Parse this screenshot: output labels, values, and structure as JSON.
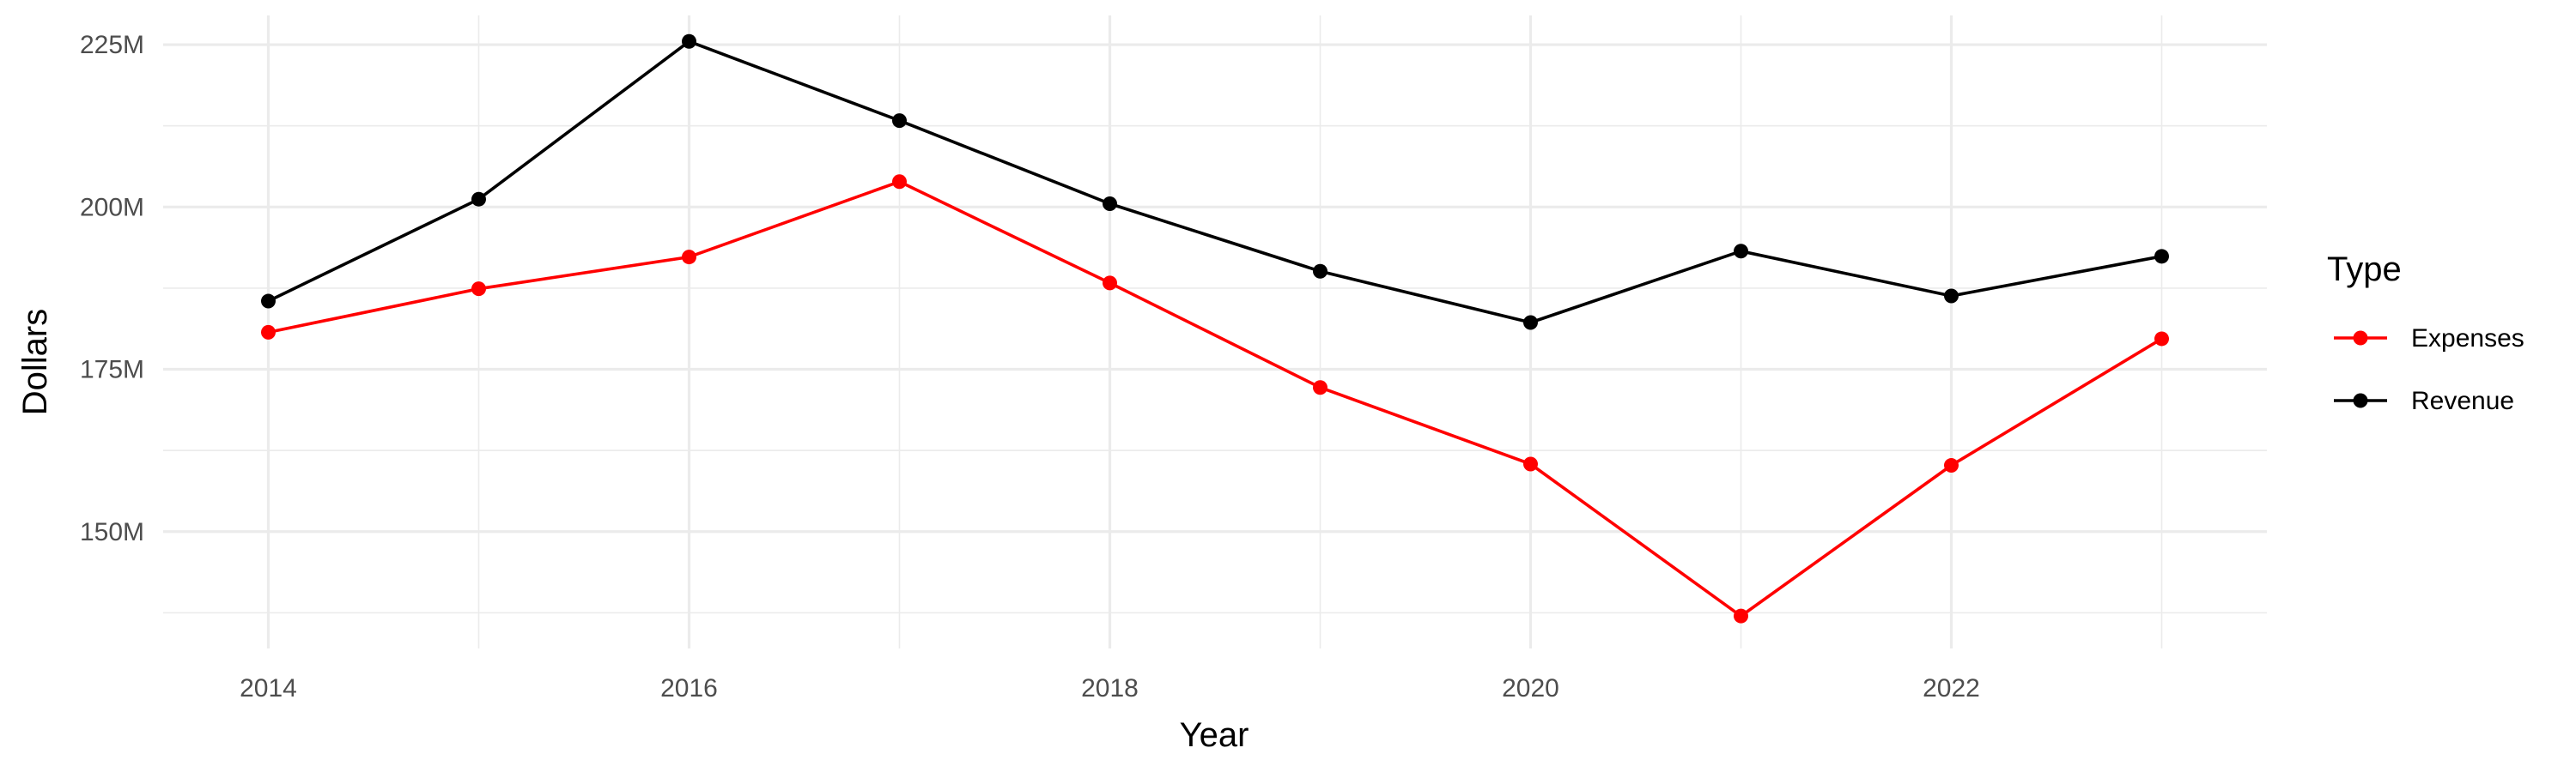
{
  "chart_data": {
    "type": "line",
    "title": "",
    "xlabel": "Year",
    "ylabel": "Dollars",
    "x": [
      2014,
      2015,
      2016,
      2017,
      2018,
      2019,
      2020,
      2021,
      2022,
      2023
    ],
    "x_ticks": [
      2014,
      2016,
      2018,
      2020,
      2022
    ],
    "x_tick_labels": [
      "2014",
      "2016",
      "2018",
      "2020",
      "2022"
    ],
    "xlim": [
      2013.5,
      2023.5
    ],
    "y_ticks": [
      150000000,
      175000000,
      200000000,
      225000000
    ],
    "y_tick_labels": [
      "150M",
      "175M",
      "200M",
      "225M"
    ],
    "ylim": [
      132000000,
      229500000
    ],
    "grid": true,
    "legend": {
      "title": "Type",
      "position": "right"
    },
    "series": [
      {
        "name": "Expenses",
        "color": "#ff0000",
        "values": [
          180700000,
          187400000,
          192300000,
          203900000,
          188300000,
          172200000,
          160400000,
          137000000,
          160200000,
          179700000
        ]
      },
      {
        "name": "Revenue",
        "color": "#000000",
        "values": [
          185500000,
          201200000,
          225500000,
          213300000,
          200500000,
          190100000,
          182200000,
          193200000,
          186300000,
          192400000
        ]
      }
    ]
  }
}
